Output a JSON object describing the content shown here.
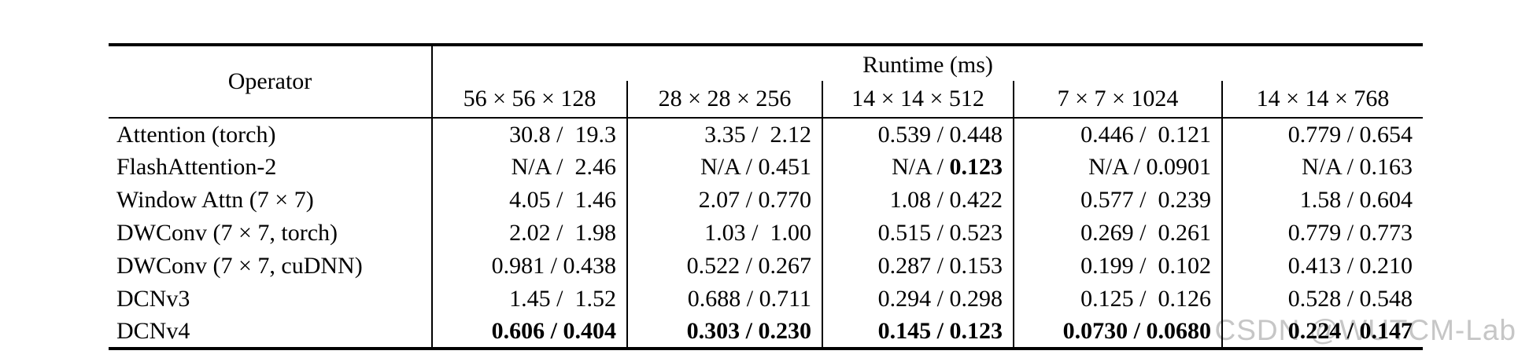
{
  "watermark": "CSDN @WUTCM-Lab",
  "table": {
    "operator_header": "Operator",
    "runtime_header": "Runtime (ms)",
    "columns": [
      "56 × 56 × 128",
      "28 × 28 × 256",
      "14 × 14 × 512",
      "7 × 7 × 1024",
      "14 × 14 × 768"
    ],
    "rows": [
      {
        "operator": "Attention (torch)",
        "cells": [
          [
            {
              "t": "30.8 /  19.3",
              "b": false
            }
          ],
          [
            {
              "t": "3.35 /  2.12",
              "b": false
            }
          ],
          [
            {
              "t": "0.539 / 0.448",
              "b": false
            }
          ],
          [
            {
              "t": "0.446 /  0.121",
              "b": false
            }
          ],
          [
            {
              "t": "0.779 / 0.654",
              "b": false
            }
          ]
        ]
      },
      {
        "operator": "FlashAttention-2",
        "cells": [
          [
            {
              "t": "N/A /  2.46",
              "b": false
            }
          ],
          [
            {
              "t": "N/A / 0.451",
              "b": false
            }
          ],
          [
            {
              "t": "N/A / ",
              "b": false
            },
            {
              "t": "0.123",
              "b": true
            }
          ],
          [
            {
              "t": "N/A / 0.0901",
              "b": false
            }
          ],
          [
            {
              "t": "N/A / 0.163",
              "b": false
            }
          ]
        ]
      },
      {
        "operator": "Window Attn (7 × 7)",
        "cells": [
          [
            {
              "t": "4.05 /  1.46",
              "b": false
            }
          ],
          [
            {
              "t": "2.07 / 0.770",
              "b": false
            }
          ],
          [
            {
              "t": "1.08 / 0.422",
              "b": false
            }
          ],
          [
            {
              "t": "0.577 /  0.239",
              "b": false
            }
          ],
          [
            {
              "t": "1.58 / 0.604",
              "b": false
            }
          ]
        ]
      },
      {
        "operator": "DWConv (7 × 7, torch)",
        "cells": [
          [
            {
              "t": "2.02 /  1.98",
              "b": false
            }
          ],
          [
            {
              "t": "1.03 /  1.00",
              "b": false
            }
          ],
          [
            {
              "t": "0.515 / 0.523",
              "b": false
            }
          ],
          [
            {
              "t": "0.269 /  0.261",
              "b": false
            }
          ],
          [
            {
              "t": "0.779 / 0.773",
              "b": false
            }
          ]
        ]
      },
      {
        "operator": "DWConv (7 × 7, cuDNN)",
        "cells": [
          [
            {
              "t": "0.981 / 0.438",
              "b": false
            }
          ],
          [
            {
              "t": "0.522 / 0.267",
              "b": false
            }
          ],
          [
            {
              "t": "0.287 / 0.153",
              "b": false
            }
          ],
          [
            {
              "t": "0.199 /  0.102",
              "b": false
            }
          ],
          [
            {
              "t": "0.413 / 0.210",
              "b": false
            }
          ]
        ]
      },
      {
        "operator": "DCNv3",
        "cells": [
          [
            {
              "t": "1.45 /  1.52",
              "b": false
            }
          ],
          [
            {
              "t": "0.688 / 0.711",
              "b": false
            }
          ],
          [
            {
              "t": "0.294 / 0.298",
              "b": false
            }
          ],
          [
            {
              "t": "0.125 /  0.126",
              "b": false
            }
          ],
          [
            {
              "t": "0.528 / 0.548",
              "b": false
            }
          ]
        ]
      },
      {
        "operator": "DCNv4",
        "cells": [
          [
            {
              "t": "0.606 / 0.404",
              "b": true
            }
          ],
          [
            {
              "t": "0.303 / 0.230",
              "b": true
            }
          ],
          [
            {
              "t": "0.145 / 0.123",
              "b": true
            }
          ],
          [
            {
              "t": "0.0730 / 0.0680",
              "b": true
            }
          ],
          [
            {
              "t": "0.224 / 0.147",
              "b": true
            }
          ]
        ]
      }
    ]
  }
}
